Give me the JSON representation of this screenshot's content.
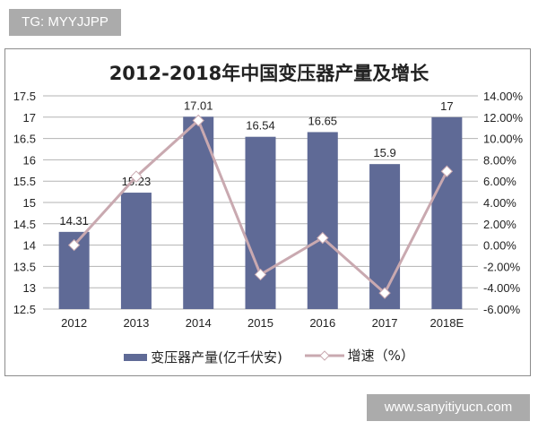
{
  "watermark_top": "TG: MYYJJPP",
  "watermark_bottom": "www.sanyitiyucn.com",
  "chart_data": {
    "type": "bar+line",
    "title": "2012-2018年中国变压器产量及增长",
    "categories": [
      "2012",
      "2013",
      "2014",
      "2015",
      "2016",
      "2017",
      "2018E"
    ],
    "series": [
      {
        "name": "变压器产量(亿千伏安)",
        "type": "bar",
        "axis": "left",
        "color": "#5f6a96",
        "values": [
          14.31,
          15.23,
          17.01,
          16.54,
          16.65,
          15.9,
          17
        ],
        "labels": [
          "14.31",
          "15.23",
          "17.01",
          "16.54",
          "16.65",
          "15.9",
          "17"
        ]
      },
      {
        "name": "增速（%）",
        "type": "line",
        "axis": "right",
        "color": "#c9a9b0",
        "values": [
          0.0,
          6.43,
          11.69,
          -2.76,
          0.67,
          -4.5,
          6.92
        ]
      }
    ],
    "y_left": {
      "min": 12.5,
      "max": 17.5,
      "step": 0.5,
      "ticks": [
        "17.5",
        "17",
        "16.5",
        "16",
        "15.5",
        "15",
        "14.5",
        "14",
        "13.5",
        "13",
        "12.5"
      ]
    },
    "y_right": {
      "min": -6,
      "max": 14,
      "step": 2,
      "ticks": [
        "14.00%",
        "12.00%",
        "10.00%",
        "8.00%",
        "6.00%",
        "4.00%",
        "2.00%",
        "0.00%",
        "-2.00%",
        "-4.00%",
        "-6.00%"
      ]
    },
    "grid": true,
    "legend_position": "bottom"
  },
  "legend": {
    "bar_label": "变压器产量(亿千伏安)",
    "line_label": "增速（%）"
  }
}
